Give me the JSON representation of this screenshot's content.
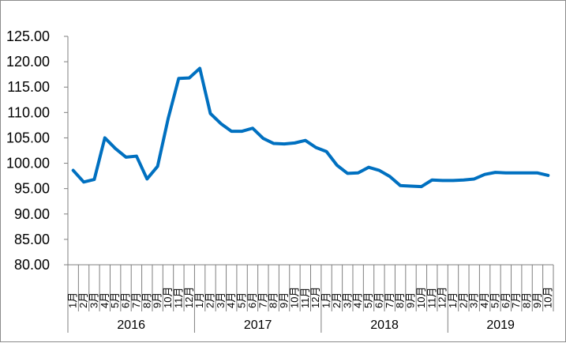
{
  "chart_data": {
    "type": "line",
    "title": "",
    "xlabel": "",
    "ylabel": "",
    "ylim": [
      80,
      125
    ],
    "yticks": [
      "125.00",
      "120.00",
      "115.00",
      "110.00",
      "105.00",
      "100.00",
      "95.00",
      "90.00",
      "85.00",
      "80.00"
    ],
    "grid": false,
    "legend": "none",
    "line_color": "#0070c0",
    "month_labels": [
      "1月",
      "2月",
      "3月",
      "4月",
      "5月",
      "6月",
      "7月",
      "8月",
      "9月",
      "10月",
      "11月",
      "12月",
      "1月",
      "2月",
      "3月",
      "4月",
      "5月",
      "6月",
      "7月",
      "8月",
      "9月",
      "10月",
      "11月",
      "12月",
      "1月",
      "2月",
      "3月",
      "4月",
      "5月",
      "6月",
      "7月",
      "8月",
      "9月",
      "10月",
      "11月",
      "12月",
      "1月",
      "2月",
      "3月",
      "4月",
      "5月",
      "6月",
      "7月",
      "8月",
      "9月",
      "10月"
    ],
    "years": [
      {
        "label": "2016",
        "months": 12
      },
      {
        "label": "2017",
        "months": 12
      },
      {
        "label": "2018",
        "months": 12
      },
      {
        "label": "2019",
        "months": 10
      }
    ],
    "series": [
      {
        "values": [
          98.6,
          96.3,
          96.8,
          105.0,
          102.9,
          101.2,
          101.4,
          96.9,
          99.4,
          108.8,
          116.7,
          116.8,
          118.7,
          109.8,
          107.8,
          106.3,
          106.3,
          106.9,
          104.9,
          103.9,
          103.8,
          104.0,
          104.5,
          103.1,
          102.3,
          99.6,
          98.0,
          98.1,
          99.2,
          98.6,
          97.4,
          95.6,
          95.5,
          95.4,
          96.7,
          96.6,
          96.6,
          96.7,
          96.9,
          97.8,
          98.2,
          98.1,
          98.1,
          98.1,
          98.1,
          97.6
        ]
      }
    ]
  }
}
